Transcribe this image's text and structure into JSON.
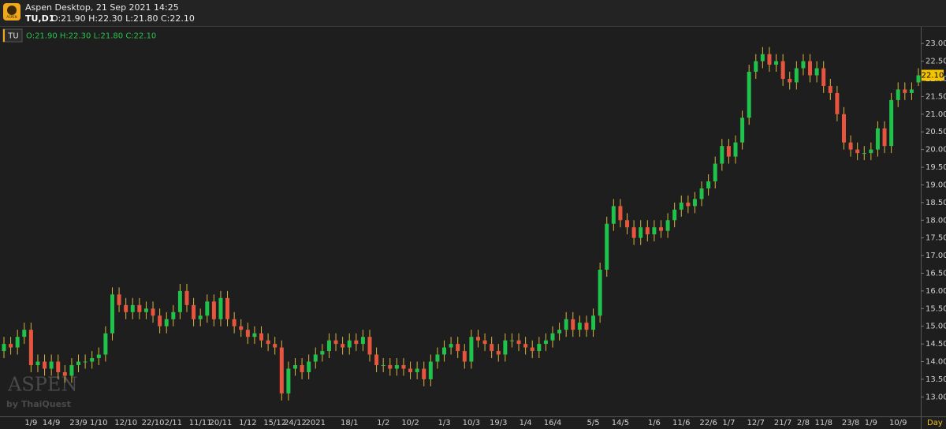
{
  "header": {
    "title": "Aspen Desktop, 21 Sep 2021 14:25",
    "symbol": "TU,D1",
    "ohlc": "O:21.90 H:22.30 L:21.80 C:22.10",
    "logo": "ASPEN"
  },
  "legend": {
    "symbol": "TU",
    "ohlc": "O:21.90 H:22.30 L:21.80 C:22.10"
  },
  "watermark": {
    "name": "ASPEN",
    "by": "by ThaiQuest"
  },
  "chart_data": {
    "type": "candlestick",
    "up_color": "#1fc24a",
    "down_color": "#e8553e",
    "wick_color": "#d9b43c",
    "period_label": "Day",
    "last_label": "22.10",
    "ylim": [
      12.45,
      23.45
    ],
    "yticks": [
      {
        "value": 13,
        "label": "13.00"
      },
      {
        "value": 13.5,
        "label": "13.50"
      },
      {
        "value": 14,
        "label": "14.00"
      },
      {
        "value": 14.5,
        "label": "14.50"
      },
      {
        "value": 15,
        "label": "15.00"
      },
      {
        "value": 15.5,
        "label": "15.50"
      },
      {
        "value": 16,
        "label": "16.00"
      },
      {
        "value": 16.5,
        "label": "16.50"
      },
      {
        "value": 17,
        "label": "17.00"
      },
      {
        "value": 17.5,
        "label": "17.50"
      },
      {
        "value": 18,
        "label": "18.00"
      },
      {
        "value": 18.5,
        "label": "18.50"
      },
      {
        "value": 19,
        "label": "19.00"
      },
      {
        "value": 19.5,
        "label": "19.50"
      },
      {
        "value": 20,
        "label": "20.00"
      },
      {
        "value": 20.5,
        "label": "20.50"
      },
      {
        "value": 21,
        "label": "21.00"
      },
      {
        "value": 21.5,
        "label": "21.50"
      },
      {
        "value": 22,
        "label": "22.00"
      },
      {
        "value": 22.5,
        "label": "22.50"
      },
      {
        "value": 23,
        "label": "23.00"
      }
    ],
    "categories": [
      null,
      null,
      null,
      null,
      "1/9",
      null,
      null,
      "14/9",
      null,
      null,
      null,
      "23/9",
      null,
      null,
      "1/10",
      null,
      null,
      null,
      "12/10",
      null,
      null,
      null,
      "22/10",
      null,
      null,
      "2/11",
      null,
      null,
      null,
      "11/11",
      null,
      null,
      "20/11",
      null,
      null,
      null,
      "1/12",
      null,
      null,
      null,
      "15/12",
      null,
      null,
      "24/12",
      null,
      null,
      "2021",
      null,
      null,
      null,
      null,
      "18/1",
      null,
      null,
      null,
      null,
      "1/2",
      null,
      null,
      null,
      "10/2",
      null,
      null,
      null,
      null,
      "1/3",
      null,
      null,
      null,
      "10/3",
      null,
      null,
      null,
      "19/3",
      null,
      null,
      null,
      "1/4",
      null,
      null,
      null,
      "16/4",
      null,
      null,
      null,
      null,
      null,
      "5/5",
      null,
      null,
      null,
      "14/5",
      null,
      null,
      null,
      null,
      "1/6",
      null,
      null,
      null,
      "11/6",
      null,
      null,
      null,
      "22/6",
      null,
      null,
      "1/7",
      null,
      null,
      null,
      "12/7",
      null,
      null,
      null,
      "21/7",
      null,
      null,
      "2/8",
      null,
      null,
      "11/8",
      null,
      null,
      null,
      "23/8",
      null,
      null,
      "1/9",
      null,
      null,
      null,
      "10/9",
      null,
      null,
      null
    ],
    "open": [
      14.3,
      14.5,
      14.4,
      14.7,
      14.9,
      13.9,
      14.0,
      13.8,
      14.0,
      13.7,
      13.6,
      13.9,
      14.0,
      14.0,
      14.1,
      14.2,
      14.8,
      15.9,
      15.6,
      15.4,
      15.6,
      15.4,
      15.5,
      15.3,
      15.0,
      15.2,
      15.4,
      16.0,
      15.6,
      15.2,
      15.3,
      15.7,
      15.2,
      15.8,
      15.2,
      15.0,
      14.9,
      14.7,
      14.8,
      14.6,
      14.5,
      14.4,
      13.1,
      13.8,
      13.9,
      13.7,
      14.0,
      14.2,
      14.3,
      14.6,
      14.5,
      14.4,
      14.6,
      14.5,
      14.7,
      14.2,
      13.9,
      13.9,
      13.8,
      13.9,
      13.8,
      13.7,
      13.8,
      13.5,
      14.0,
      14.2,
      14.4,
      14.5,
      14.3,
      14.0,
      14.7,
      14.6,
      14.5,
      14.3,
      14.2,
      14.6,
      14.6,
      14.5,
      14.4,
      14.3,
      14.5,
      14.6,
      14.8,
      14.9,
      15.2,
      14.9,
      15.1,
      14.9,
      15.3,
      16.6,
      17.9,
      18.4,
      18.0,
      17.8,
      17.5,
      17.8,
      17.6,
      17.8,
      17.7,
      18.0,
      18.3,
      18.5,
      18.4,
      18.6,
      18.9,
      19.1,
      19.6,
      20.1,
      19.8,
      20.2,
      20.9,
      22.2,
      22.5,
      22.7,
      22.4,
      22.5,
      22.0,
      21.9,
      22.3,
      22.5,
      22.1,
      22.3,
      21.8,
      21.6,
      21.0,
      20.2,
      20.0,
      19.9,
      19.9,
      20.0,
      20.6,
      20.1,
      21.4,
      21.7,
      21.6,
      21.9
    ],
    "high": [
      14.7,
      14.7,
      14.9,
      15.1,
      15.1,
      14.2,
      14.2,
      14.2,
      14.2,
      13.9,
      14.1,
      14.2,
      14.2,
      14.3,
      14.4,
      15.0,
      16.1,
      16.1,
      15.8,
      15.8,
      15.8,
      15.7,
      15.7,
      15.5,
      15.4,
      15.6,
      16.2,
      16.2,
      15.8,
      15.5,
      15.9,
      15.9,
      16.0,
      16.0,
      15.4,
      15.2,
      15.1,
      15.0,
      15.0,
      14.8,
      14.7,
      14.6,
      14.0,
      14.1,
      14.1,
      14.2,
      14.4,
      14.5,
      14.8,
      14.8,
      14.7,
      14.8,
      14.8,
      14.9,
      14.9,
      14.4,
      14.1,
      14.1,
      14.1,
      14.1,
      14.0,
      14.0,
      14.0,
      14.2,
      14.4,
      14.6,
      14.7,
      14.7,
      14.5,
      14.9,
      14.9,
      14.8,
      14.7,
      14.5,
      14.8,
      14.8,
      14.8,
      14.7,
      14.6,
      14.7,
      14.8,
      15.0,
      15.1,
      15.4,
      15.4,
      15.3,
      15.3,
      15.5,
      16.8,
      18.1,
      18.6,
      18.6,
      18.2,
      18.0,
      18.0,
      18.0,
      18.0,
      18.0,
      18.2,
      18.5,
      18.7,
      18.7,
      18.8,
      19.1,
      19.3,
      19.8,
      20.3,
      20.3,
      20.4,
      21.1,
      22.4,
      22.7,
      22.9,
      22.9,
      22.7,
      22.7,
      22.2,
      22.5,
      22.7,
      22.7,
      22.5,
      22.5,
      22.0,
      21.8,
      21.2,
      20.4,
      20.2,
      20.1,
      20.2,
      20.8,
      20.8,
      21.6,
      21.9,
      21.9,
      21.9,
      22.3
    ],
    "low": [
      14.1,
      14.2,
      14.2,
      14.5,
      13.7,
      13.7,
      13.6,
      13.6,
      13.5,
      13.4,
      13.4,
      13.7,
      13.8,
      13.8,
      13.9,
      14.0,
      14.6,
      15.4,
      15.2,
      15.2,
      15.2,
      15.2,
      15.1,
      14.8,
      14.8,
      15.0,
      15.2,
      15.4,
      15.0,
      15.0,
      15.1,
      15.0,
      15.0,
      15.0,
      14.8,
      14.7,
      14.5,
      14.5,
      14.4,
      14.3,
      14.2,
      12.9,
      12.9,
      13.6,
      13.5,
      13.5,
      13.8,
      14.0,
      14.1,
      14.3,
      14.2,
      14.2,
      14.3,
      14.3,
      14.0,
      13.7,
      13.7,
      13.6,
      13.6,
      13.6,
      13.5,
      13.5,
      13.3,
      13.3,
      13.8,
      14.0,
      14.2,
      14.1,
      13.8,
      13.8,
      14.4,
      14.3,
      14.1,
      14.0,
      14.0,
      14.4,
      14.3,
      14.2,
      14.1,
      14.1,
      14.3,
      14.4,
      14.6,
      14.7,
      14.7,
      14.7,
      14.7,
      14.7,
      15.1,
      16.4,
      17.7,
      17.8,
      17.6,
      17.3,
      17.3,
      17.4,
      17.4,
      17.5,
      17.5,
      17.8,
      18.1,
      18.2,
      18.2,
      18.4,
      18.7,
      18.9,
      19.4,
      19.6,
      19.6,
      20.0,
      20.7,
      22.0,
      22.3,
      22.2,
      22.2,
      21.8,
      21.7,
      21.7,
      22.1,
      21.9,
      21.9,
      21.6,
      21.4,
      20.8,
      20.0,
      19.8,
      19.7,
      19.7,
      19.7,
      19.8,
      19.9,
      19.9,
      21.2,
      21.4,
      21.4,
      21.8
    ],
    "close": [
      14.5,
      14.4,
      14.7,
      14.9,
      13.9,
      14.0,
      13.8,
      14.0,
      13.7,
      13.6,
      13.9,
      14.0,
      14.0,
      14.1,
      14.2,
      14.8,
      15.9,
      15.6,
      15.4,
      15.6,
      15.4,
      15.5,
      15.3,
      15.0,
      15.2,
      15.4,
      16.0,
      15.6,
      15.2,
      15.3,
      15.7,
      15.2,
      15.8,
      15.2,
      15.0,
      14.9,
      14.7,
      14.8,
      14.6,
      14.5,
      14.4,
      13.1,
      13.8,
      13.9,
      13.7,
      14.0,
      14.2,
      14.3,
      14.6,
      14.5,
      14.4,
      14.6,
      14.5,
      14.7,
      14.2,
      13.9,
      13.9,
      13.8,
      13.9,
      13.8,
      13.7,
      13.8,
      13.5,
      14.0,
      14.2,
      14.4,
      14.5,
      14.3,
      14.0,
      14.7,
      14.6,
      14.5,
      14.3,
      14.2,
      14.6,
      14.6,
      14.5,
      14.4,
      14.3,
      14.5,
      14.6,
      14.8,
      14.9,
      15.2,
      14.9,
      15.1,
      14.9,
      15.3,
      16.6,
      17.9,
      18.4,
      18.0,
      17.8,
      17.5,
      17.8,
      17.6,
      17.8,
      17.7,
      18.0,
      18.3,
      18.5,
      18.4,
      18.6,
      18.9,
      19.1,
      19.6,
      20.1,
      19.8,
      20.2,
      20.9,
      22.2,
      22.5,
      22.7,
      22.4,
      22.5,
      22.0,
      21.9,
      22.3,
      22.5,
      22.1,
      22.3,
      21.8,
      21.6,
      21.0,
      20.2,
      20.0,
      19.9,
      19.9,
      20.0,
      20.6,
      20.1,
      21.4,
      21.7,
      21.6,
      21.7,
      22.1
    ]
  }
}
